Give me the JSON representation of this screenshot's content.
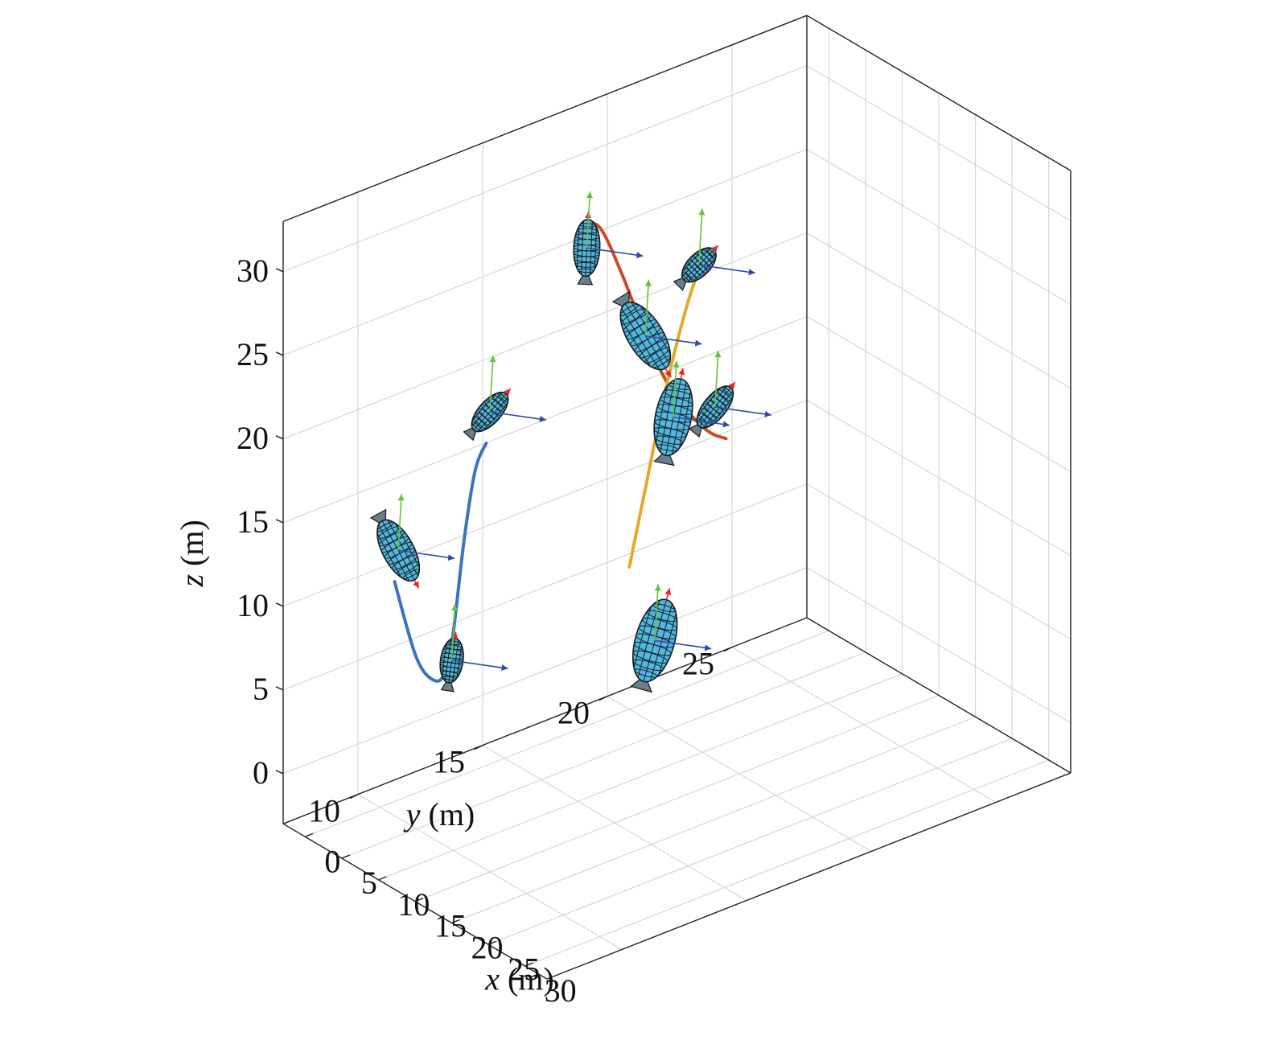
{
  "chart_data": {
    "type": "line",
    "dimensions": 3,
    "grid": true,
    "xlabel_var": "x",
    "xlabel_unit": " (m)",
    "ylabel_var": "y",
    "ylabel_unit": " (m)",
    "zlabel_var": "z",
    "zlabel_unit": " (m)",
    "xlim": [
      -3,
      33
    ],
    "ylim": [
      7,
      28
    ],
    "zlim": [
      -3,
      33
    ],
    "x_ticks": [
      "0",
      "5",
      "10",
      "15",
      "20",
      "25",
      "30"
    ],
    "y_ticks": [
      "10",
      "15",
      "20",
      "25"
    ],
    "z_ticks": [
      "0",
      "5",
      "10",
      "15",
      "20",
      "25",
      "30"
    ],
    "colors": {
      "series_red": "#cd4a22",
      "series_blue": "#3a73bf",
      "series_yellow": "#e3a92c",
      "airship_body": "#4fb9e3",
      "airship_grid": "#1a1a1a",
      "arrow_x": "#e8282a",
      "arrow_y": "#5fc437",
      "arrow_z": "#2e4aa8",
      "gridline": "#d6d6d6",
      "box": "#222222"
    },
    "series": [
      {
        "color_key": "series_red",
        "points": [
          {
            "x": 1.0,
            "y": 18.0,
            "z": 27.5
          },
          {
            "x": 3.0,
            "y": 18.0,
            "z": 27.6
          },
          {
            "x": 6.0,
            "y": 18.0,
            "z": 25.5
          },
          {
            "x": 10.0,
            "y": 18.0,
            "z": 22.0
          },
          {
            "x": 13.0,
            "y": 18.0,
            "z": 20.3
          },
          {
            "x": 16.0,
            "y": 18.0,
            "z": 19.5
          },
          {
            "x": 18.0,
            "y": 18.0,
            "z": 19.3
          },
          {
            "x": 20.0,
            "y": 18.0,
            "z": 19.5
          }
        ]
      },
      {
        "color_key": "series_blue",
        "points": [
          {
            "x": 2.0,
            "y": 10.0,
            "z": 11.0
          },
          {
            "x": 5.0,
            "y": 10.0,
            "z": 7.2
          },
          {
            "x": 7.5,
            "y": 10.0,
            "z": 6.5
          },
          {
            "x": 9.0,
            "y": 10.0,
            "z": 7.5
          },
          {
            "x": 10.0,
            "y": 10.0,
            "z": 10.0
          },
          {
            "x": 11.5,
            "y": 10.0,
            "z": 16.0
          },
          {
            "x": 13.0,
            "y": 10.0,
            "z": 20.5
          },
          {
            "x": 14.5,
            "y": 10.0,
            "z": 22.5
          }
        ]
      },
      {
        "color_key": "series_yellow",
        "points": [
          {
            "x": 0.0,
            "y": 20.0,
            "z": 5.5
          },
          {
            "x": 2.5,
            "y": 20.0,
            "z": 11.5
          },
          {
            "x": 5.0,
            "y": 20.0,
            "z": 17.5
          },
          {
            "x": 7.5,
            "y": 20.0,
            "z": 22.5
          },
          {
            "x": 9.0,
            "y": 20.0,
            "z": 25.0
          },
          {
            "x": 10.5,
            "y": 20.0,
            "z": 27.0
          }
        ]
      }
    ],
    "airships": [
      {
        "pos": {
          "x": 1.0,
          "y": 18.0,
          "z": 26.0
        },
        "dir": {
          "x": 0.1,
          "y": 0,
          "z": 1.0
        },
        "length": 3.5
      },
      {
        "pos": {
          "x": 9.0,
          "y": 18.0,
          "z": 22.8
        },
        "dir": {
          "x": 1.0,
          "y": 0,
          "z": -0.45
        },
        "length": 6.0
      },
      {
        "pos": {
          "x": 18.5,
          "y": 18.0,
          "z": 21.0
        },
        "dir": {
          "x": 1.0,
          "y": 0,
          "z": 0.8
        },
        "length": 5.5
      },
      {
        "pos": {
          "x": 2.5,
          "y": 10.0,
          "z": 13.0
        },
        "dir": {
          "x": 1.0,
          "y": 0,
          "z": -0.55
        },
        "length": 5.0
      },
      {
        "pos": {
          "x": 9.8,
          "y": 10.0,
          "z": 8.3
        },
        "dir": {
          "x": 0.3,
          "y": 0,
          "z": 1.0
        },
        "length": 3.0
      },
      {
        "pos": {
          "x": 15.0,
          "y": 10.0,
          "z": 24.5
        },
        "dir": {
          "x": 1.0,
          "y": 0,
          "z": 0.75
        },
        "length": 5.5
      },
      {
        "pos": {
          "x": 3.5,
          "y": 20.0,
          "z": 2.0
        },
        "dir": {
          "x": 0.55,
          "y": 0,
          "z": 1.0
        },
        "length": 6.5
      },
      {
        "pos": {
          "x": 6.0,
          "y": 20.0,
          "z": 16.0
        },
        "dir": {
          "x": 0.4,
          "y": 0,
          "z": 1.0
        },
        "length": 5.5
      },
      {
        "pos": {
          "x": 9.5,
          "y": 20.0,
          "z": 26.0
        },
        "dir": {
          "x": 1.0,
          "y": 0,
          "z": 0.7
        },
        "length": 5.0
      }
    ]
  }
}
